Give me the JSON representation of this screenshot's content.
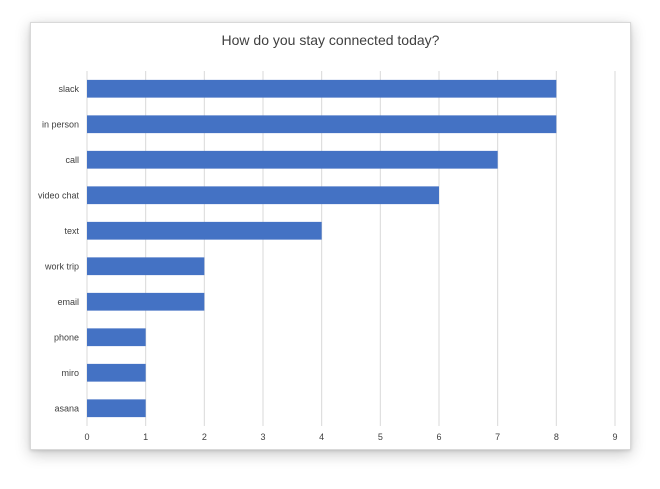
{
  "chart_data": {
    "type": "bar",
    "orientation": "horizontal",
    "title": "How do you stay connected today?",
    "xlabel": "",
    "ylabel": "",
    "categories": [
      "slack",
      "in person",
      "call",
      "video chat",
      "text",
      "work trip",
      "email",
      "phone",
      "miro",
      "asana"
    ],
    "values": [
      8,
      8,
      7,
      6,
      4,
      2,
      2,
      1,
      1,
      1
    ],
    "xlim": [
      0,
      9
    ],
    "xticks": [
      "0",
      "1",
      "2",
      "3",
      "4",
      "5",
      "6",
      "7",
      "8",
      "9"
    ],
    "grid": true,
    "legend": "none",
    "bar_color": "#4472C4",
    "grid_color": "#d9d9d9"
  }
}
